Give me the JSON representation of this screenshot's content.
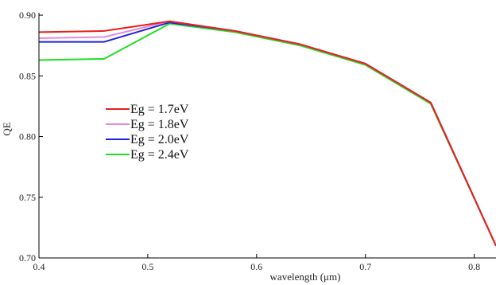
{
  "chart_data": {
    "type": "line",
    "xlabel": "wavelength (μm)",
    "ylabel": "QE",
    "xlim": [
      0.4,
      0.82
    ],
    "ylim": [
      0.7,
      0.902
    ],
    "x_ticks": [
      "0.4",
      "0.5",
      "0.6",
      "0.7",
      "0.8"
    ],
    "y_ticks": [
      "0.70",
      "0.75",
      "0.80",
      "0.85",
      "0.90"
    ],
    "x_tick_values": [
      0.4,
      0.5,
      0.6,
      0.7,
      0.8
    ],
    "y_tick_values": [
      0.7,
      0.75,
      0.8,
      0.85,
      0.9
    ],
    "grid": false,
    "legend_position": "center-left",
    "series": [
      {
        "name": "Eg = 1.7eV",
        "color": "#e8201a",
        "x": [
          0.4,
          0.46,
          0.52,
          0.58,
          0.64,
          0.7,
          0.76,
          0.82
        ],
        "y": [
          0.886,
          0.887,
          0.895,
          0.887,
          0.876,
          0.86,
          0.828,
          0.71
        ]
      },
      {
        "name": "Eg = 1.8eV",
        "color": "#e08ae0",
        "x": [
          0.4,
          0.46,
          0.52,
          0.58,
          0.64,
          0.7,
          0.76,
          0.82
        ],
        "y": [
          0.881,
          0.882,
          0.895,
          0.887,
          0.876,
          0.86,
          0.828,
          0.71
        ]
      },
      {
        "name": "Eg = 2.0eV",
        "color": "#2020e0",
        "x": [
          0.4,
          0.46,
          0.52,
          0.58,
          0.64,
          0.7,
          0.76,
          0.82
        ],
        "y": [
          0.878,
          0.878,
          0.894,
          0.887,
          0.876,
          0.86,
          0.828,
          0.71
        ]
      },
      {
        "name": "Eg = 2.4eV",
        "color": "#20e020",
        "x": [
          0.4,
          0.46,
          0.52,
          0.58,
          0.64,
          0.7,
          0.76,
          0.82
        ],
        "y": [
          0.863,
          0.864,
          0.893,
          0.886,
          0.875,
          0.859,
          0.827,
          0.71
        ]
      }
    ]
  }
}
